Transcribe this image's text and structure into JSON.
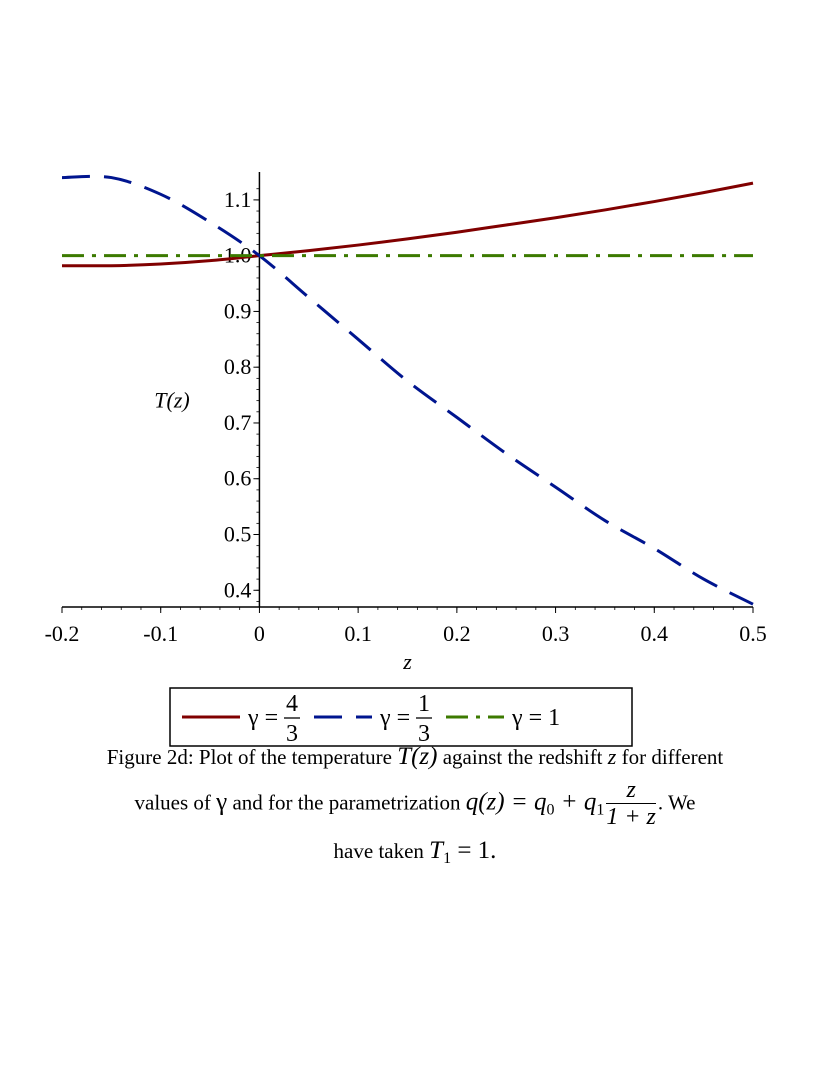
{
  "chart_data": {
    "type": "line",
    "xlabel": "z",
    "ylabel": "T(z)",
    "xlim": [
      -0.2,
      0.5
    ],
    "ylim": [
      0.37,
      1.15
    ],
    "x_ticks": [
      "-0.2",
      "-0.1",
      "0",
      "0.1",
      "0.2",
      "0.3",
      "0.4",
      "0.5"
    ],
    "y_ticks": [
      "0.4",
      "0.5",
      "0.6",
      "0.7",
      "0.8",
      "0.9",
      "1.0",
      "1.1"
    ],
    "x": [
      -0.2,
      -0.15,
      -0.1,
      -0.05,
      0.0,
      0.05,
      0.1,
      0.15,
      0.2,
      0.25,
      0.3,
      0.35,
      0.4,
      0.45,
      0.5
    ],
    "series": [
      {
        "name": "γ = 4/3",
        "legend_symbol": "γ",
        "legend_frac": [
          "4",
          "3"
        ],
        "color": "#800000",
        "dash": "solid",
        "values": [
          0.982,
          0.982,
          0.985,
          0.991,
          1.0,
          1.009,
          1.019,
          1.03,
          1.042,
          1.055,
          1.068,
          1.082,
          1.097,
          1.113,
          1.13
        ]
      },
      {
        "name": "γ = 1/3",
        "legend_symbol": "γ",
        "legend_frac": [
          "1",
          "3"
        ],
        "color": "#00158f",
        "dash": "long-dash",
        "values": [
          1.14,
          1.14,
          1.11,
          1.06,
          1.0,
          0.925,
          0.85,
          0.775,
          0.71,
          0.645,
          0.585,
          0.525,
          0.475,
          0.42,
          0.375
        ]
      },
      {
        "name": "γ = 1",
        "legend_symbol": "γ",
        "legend_value": "= 1",
        "color": "#3c7a00",
        "dash": "dash-dot",
        "values": [
          1.0,
          1.0,
          1.0,
          1.0,
          1.0,
          1.0,
          1.0,
          1.0,
          1.0,
          1.0,
          1.0,
          1.0,
          1.0,
          1.0,
          1.0
        ]
      }
    ],
    "legend_position": "bottom",
    "grid": false
  },
  "caption": {
    "line1_start": "Figure 2d: Plot of the temperature ",
    "line1_math": "T(z)",
    "line1_mid": " against the redshift ",
    "line1_z": "z",
    "line1_end": " for different",
    "line2_start": "values of ",
    "line2_gamma": "γ",
    "line2_mid": " and for the parametrization ",
    "line2_math": "q(z) = q",
    "line2_sub0": "0",
    "line2_plus": " + q",
    "line2_sub1": "1",
    "line2_frac_num": "z",
    "line2_frac_den": "1 + z",
    "line2_end": ". We",
    "line3_start": "have taken ",
    "line3_math": "T",
    "line3_sub": "1",
    "line3_end": " = 1."
  }
}
